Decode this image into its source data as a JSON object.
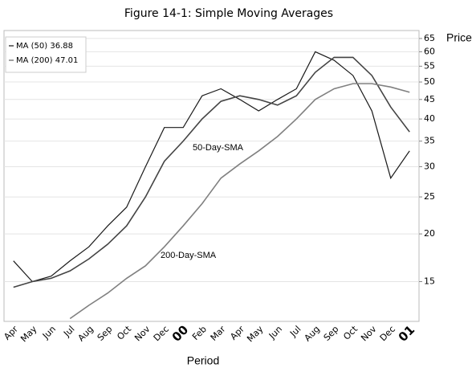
{
  "chart_data": {
    "type": "line",
    "title": "Figure 14-1: Simple Moving Averages",
    "y_label": "Price",
    "x_label": "Period",
    "annotations": [
      "50-Day-SMA",
      "200-Day-SMA"
    ],
    "categories": [
      "Apr",
      "May",
      "Jun",
      "Jul",
      "Aug",
      "Sep",
      "Oct",
      "Nov",
      "Dec",
      "00",
      "Feb",
      "Mar",
      "Apr",
      "May",
      "Jun",
      "Jul",
      "Aug",
      "Sep",
      "Oct",
      "Nov",
      "Dec",
      "01"
    ],
    "series": [
      {
        "color": "#1a1a1a",
        "values": [
          17,
          15,
          15.5,
          17,
          18.5,
          21,
          23.5,
          30,
          38,
          38,
          46,
          48,
          45,
          42,
          45,
          48,
          60,
          57,
          52,
          42,
          28,
          33
        ]
      },
      {
        "name": "MA (50) 36.88",
        "color": "#444444",
        "values": [
          14.5,
          15,
          15.3,
          16,
          17.2,
          18.8,
          21,
          25,
          31,
          35,
          40,
          44.5,
          46,
          45,
          43.5,
          46,
          53,
          58,
          58,
          52,
          43,
          37
        ]
      },
      {
        "name": "MA (200) 47.01",
        "color": "#808080",
        "values": [
          null,
          null,
          null,
          12,
          13,
          14,
          15.3,
          16.5,
          18.5,
          21,
          24,
          28,
          30.5,
          33,
          36,
          40,
          45,
          48,
          49.5,
          49.5,
          48.5,
          47
        ]
      }
    ],
    "log_scale": true,
    "ylim": [
      11.8,
      68.2
    ],
    "yticks": [
      15,
      20,
      25,
      30,
      35,
      40,
      45,
      50,
      55,
      60,
      65
    ],
    "grid": true,
    "legend": "upper left"
  }
}
